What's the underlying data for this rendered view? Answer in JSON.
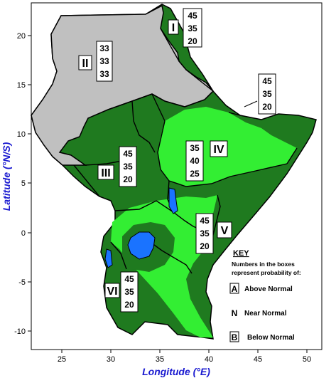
{
  "axes": {
    "x_title": "Longitude (°E)",
    "y_title": "Latitude (°N/S)",
    "x_ticks": [
      "25",
      "30",
      "35",
      "40",
      "45",
      "50"
    ],
    "y_ticks": [
      "20",
      "15",
      "10",
      "5",
      "0",
      "-5",
      "-10"
    ],
    "x_range": [
      22,
      51.5
    ],
    "y_range": [
      -12,
      24.5
    ]
  },
  "colors": {
    "below_normal_grey": "#c0c0c0",
    "above_normal_dark_green": "#1f7a1f",
    "near_normal_light_green": "#33ee33",
    "lake_blue": "#1a73ff"
  },
  "zones": [
    {
      "id": "I",
      "label": "I",
      "probs": [
        "45",
        "35",
        "20"
      ]
    },
    {
      "id": "II",
      "label": "II",
      "probs": [
        "33",
        "33",
        "33"
      ]
    },
    {
      "id": "III",
      "label": "III",
      "probs": [
        "45",
        "35",
        "20"
      ]
    },
    {
      "id": "IV",
      "label": "IV",
      "probs": [
        "35",
        "40",
        "25"
      ]
    },
    {
      "id": "V",
      "label": "V",
      "probs": [
        "45",
        "35",
        "20"
      ]
    },
    {
      "id": "VI",
      "label": "VI",
      "probs": [
        "45",
        "35",
        "20"
      ]
    },
    {
      "id": "extra",
      "probs": [
        "45",
        "35",
        "20"
      ]
    }
  ],
  "key": {
    "title": "KEY",
    "intro_line1": "Numbers in the boxes",
    "intro_line2": "represent probability of:",
    "items": [
      {
        "letter": "A",
        "text": "Above Normal"
      },
      {
        "letter": "N",
        "text": "Near Normal"
      },
      {
        "letter": "B",
        "text": "Below Normal"
      }
    ]
  }
}
